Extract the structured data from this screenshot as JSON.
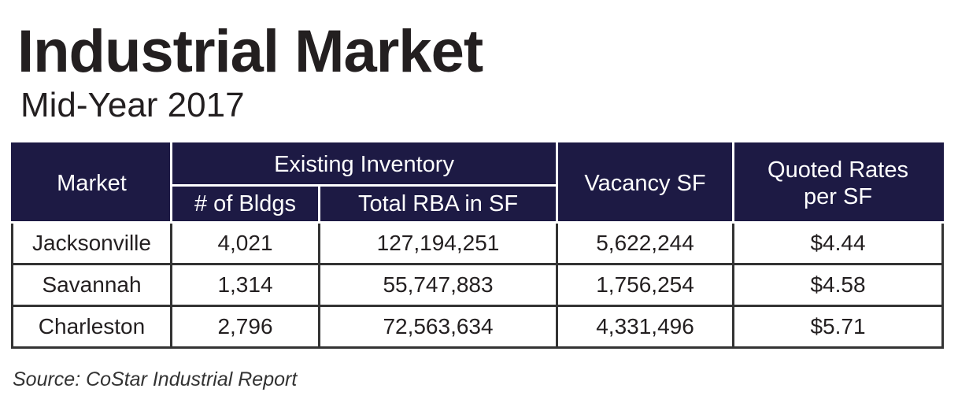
{
  "header": {
    "title": "Industrial Market",
    "subtitle": "Mid-Year 2017"
  },
  "table": {
    "headers": {
      "market": "Market",
      "existing_inventory": "Existing Inventory",
      "num_bldgs": "# of Bldgs",
      "total_rba": "Total RBA in SF",
      "vacancy": "Vacancy SF",
      "quoted_rates_line1": "Quoted Rates",
      "quoted_rates_line2": "per SF"
    },
    "rows": [
      {
        "market": "Jacksonville",
        "bldgs": "4,021",
        "rba": "127,194,251",
        "vacancy": "5,622,244",
        "rate": "$4.44"
      },
      {
        "market": "Savannah",
        "bldgs": "1,314",
        "rba": "55,747,883",
        "vacancy": "1,756,254",
        "rate": "$4.58"
      },
      {
        "market": "Charleston",
        "bldgs": "2,796",
        "rba": "72,563,634",
        "vacancy": "4,331,496",
        "rate": "$5.71"
      }
    ]
  },
  "footer": {
    "source": "Source: CoStar Industrial Report"
  },
  "colors": {
    "header_bg": "#1d1a44",
    "header_text": "#ffffff",
    "border": "#333333"
  }
}
